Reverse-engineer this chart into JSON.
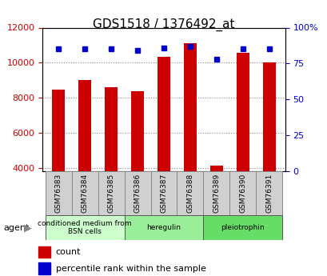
{
  "title": "GDS1518 / 1376492_at",
  "samples": [
    "GSM76383",
    "GSM76384",
    "GSM76385",
    "GSM76386",
    "GSM76387",
    "GSM76388",
    "GSM76389",
    "GSM76390",
    "GSM76391"
  ],
  "counts": [
    8450,
    9000,
    8600,
    8350,
    10350,
    11100,
    4100,
    10550,
    10000
  ],
  "percentiles": [
    85,
    85,
    85,
    84,
    86,
    87,
    78,
    85,
    85
  ],
  "ylim_left": [
    3800,
    12000
  ],
  "ylim_right": [
    0,
    100
  ],
  "yticks_left": [
    4000,
    6000,
    8000,
    10000,
    12000
  ],
  "yticks_right": [
    0,
    25,
    50,
    75,
    100
  ],
  "bar_color": "#cc0000",
  "dot_color": "#0000cc",
  "bar_width": 0.5,
  "groups": [
    {
      "label": "conditioned medium from\nBSN cells",
      "start": 0,
      "end": 3,
      "color": "#ccffcc"
    },
    {
      "label": "heregulin",
      "start": 3,
      "end": 6,
      "color": "#99ee99"
    },
    {
      "label": "pleiotrophin",
      "start": 6,
      "end": 9,
      "color": "#66dd66"
    }
  ],
  "agent_label": "agent",
  "legend_count_label": "count",
  "legend_percentile_label": "percentile rank within the sample",
  "grid_color": "#888888",
  "background_color": "#ffffff",
  "plot_bg": "#ffffff",
  "tick_label_color_left": "#cc0000",
  "tick_label_color_right": "#0000cc"
}
